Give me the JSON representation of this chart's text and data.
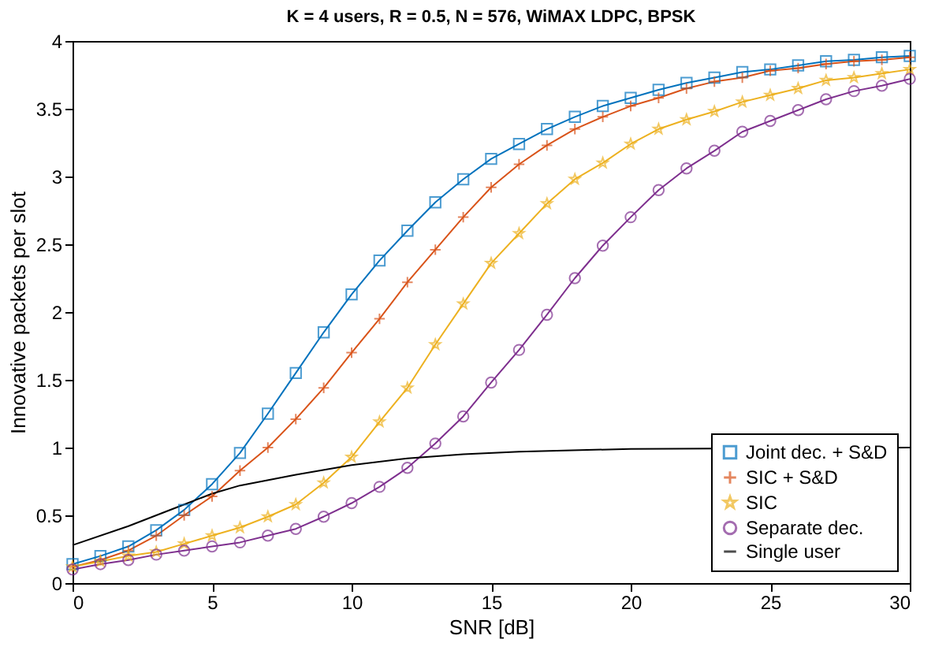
{
  "chart_data": {
    "type": "line",
    "title": "K = 4 users, R = 0.5, N = 576, WiMAX LDPC, BPSK",
    "xlabel": "SNR [dB]",
    "ylabel": "Innovative packets per slot",
    "x": [
      0,
      1,
      2,
      3,
      4,
      5,
      6,
      7,
      8,
      9,
      10,
      11,
      12,
      13,
      14,
      15,
      16,
      17,
      18,
      19,
      20,
      21,
      22,
      23,
      24,
      25,
      26,
      27,
      28,
      29,
      30
    ],
    "xlim": [
      0,
      30
    ],
    "ylim": [
      0,
      4
    ],
    "xticks": [
      0,
      5,
      10,
      15,
      20,
      25,
      30
    ],
    "yticks": [
      0,
      0.5,
      1,
      1.5,
      2,
      2.5,
      3,
      3.5,
      4
    ],
    "grid": false,
    "legend": "bottom right",
    "line_style": "solid",
    "series": [
      {
        "name": "Joint dec. + S&D",
        "color": "#0072bd",
        "marker": "square",
        "values": [
          0.14,
          0.2,
          0.27,
          0.39,
          0.54,
          0.73,
          0.96,
          1.25,
          1.55,
          1.85,
          2.13,
          2.38,
          2.6,
          2.81,
          2.98,
          3.13,
          3.24,
          3.35,
          3.44,
          3.52,
          3.58,
          3.64,
          3.69,
          3.73,
          3.77,
          3.79,
          3.82,
          3.85,
          3.86,
          3.88,
          3.89
        ]
      },
      {
        "name": "SIC + S&D",
        "color": "#d95319",
        "marker": "cross",
        "values": [
          0.12,
          0.17,
          0.24,
          0.35,
          0.5,
          0.64,
          0.83,
          1.0,
          1.21,
          1.44,
          1.7,
          1.95,
          2.22,
          2.46,
          2.7,
          2.92,
          3.09,
          3.23,
          3.35,
          3.44,
          3.52,
          3.58,
          3.65,
          3.7,
          3.73,
          3.78,
          3.8,
          3.83,
          3.85,
          3.86,
          3.88
        ]
      },
      {
        "name": "SIC",
        "color": "#edb120",
        "marker": "star",
        "values": [
          0.12,
          0.16,
          0.2,
          0.23,
          0.29,
          0.35,
          0.41,
          0.49,
          0.58,
          0.74,
          0.93,
          1.19,
          1.44,
          1.76,
          2.06,
          2.36,
          2.58,
          2.8,
          2.98,
          3.1,
          3.24,
          3.35,
          3.42,
          3.48,
          3.55,
          3.6,
          3.65,
          3.71,
          3.73,
          3.76,
          3.79
        ]
      },
      {
        "name": "Separate dec.",
        "color": "#7e2f8e",
        "marker": "circle",
        "values": [
          0.1,
          0.14,
          0.17,
          0.21,
          0.24,
          0.27,
          0.3,
          0.35,
          0.4,
          0.49,
          0.59,
          0.71,
          0.85,
          1.03,
          1.23,
          1.48,
          1.72,
          1.98,
          2.25,
          2.49,
          2.7,
          2.9,
          3.06,
          3.19,
          3.33,
          3.41,
          3.49,
          3.57,
          3.63,
          3.67,
          3.72
        ]
      },
      {
        "name": "Single user",
        "color": "#000000",
        "marker": "none",
        "x": [
          0,
          2,
          4,
          5,
          6,
          8,
          10,
          12,
          14,
          16,
          20,
          30
        ],
        "values": [
          0.28,
          0.42,
          0.58,
          0.66,
          0.72,
          0.8,
          0.87,
          0.92,
          0.95,
          0.97,
          0.99,
          1.0
        ]
      }
    ]
  }
}
